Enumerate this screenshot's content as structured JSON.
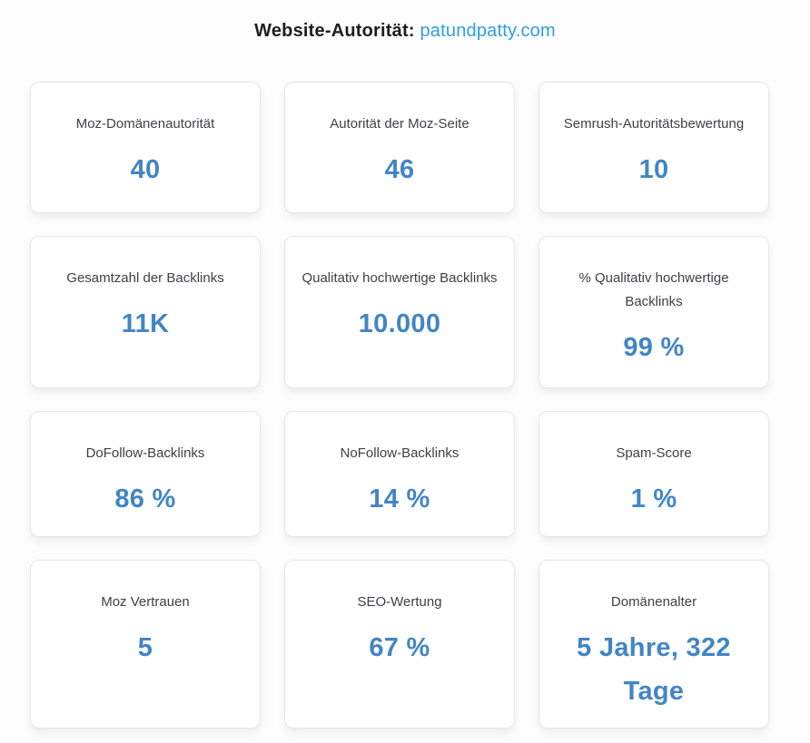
{
  "header": {
    "title_label": "Website-Autorität:",
    "domain": "patundpatty.com"
  },
  "colors": {
    "value_blue": "#4285c6",
    "link_blue": "#2e9ee4",
    "label_gray": "#3e4146",
    "title_dark": "#1c1e21",
    "card_border": "#e6e6e6"
  },
  "cards": [
    {
      "label": "Moz-Domänenautorität",
      "value": "40"
    },
    {
      "label": "Autorität der Moz-Seite",
      "value": "46"
    },
    {
      "label": "Semrush-Autoritätsbewertung",
      "value": "10"
    },
    {
      "label": "Gesamtzahl der Backlinks",
      "value": "11K"
    },
    {
      "label": "Qualitativ hochwertige Backlinks",
      "value": "10.000"
    },
    {
      "label": "% Qualitativ hochwertige Backlinks",
      "value": "99 %"
    },
    {
      "label": "DoFollow-Backlinks",
      "value": "86 %"
    },
    {
      "label": "NoFollow-Backlinks",
      "value": "14 %"
    },
    {
      "label": "Spam-Score",
      "value": "1 %"
    },
    {
      "label": "Moz Vertrauen",
      "value": "5"
    },
    {
      "label": "SEO-Wertung",
      "value": "67 %"
    },
    {
      "label": "Domänenalter",
      "value": "5 Jahre, 322 Tage"
    }
  ]
}
